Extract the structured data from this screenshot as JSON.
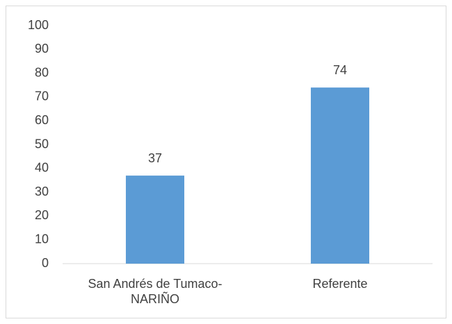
{
  "chart_data": {
    "type": "bar",
    "categories": [
      "San Andrés de Tumaco-NARIÑO",
      "Referente"
    ],
    "values": [
      37,
      74
    ],
    "color": "#5b9bd5",
    "ylim": [
      0,
      100
    ],
    "yticks": [
      0,
      10,
      20,
      30,
      40,
      50,
      60,
      70,
      80,
      90,
      100
    ],
    "grid": false
  }
}
